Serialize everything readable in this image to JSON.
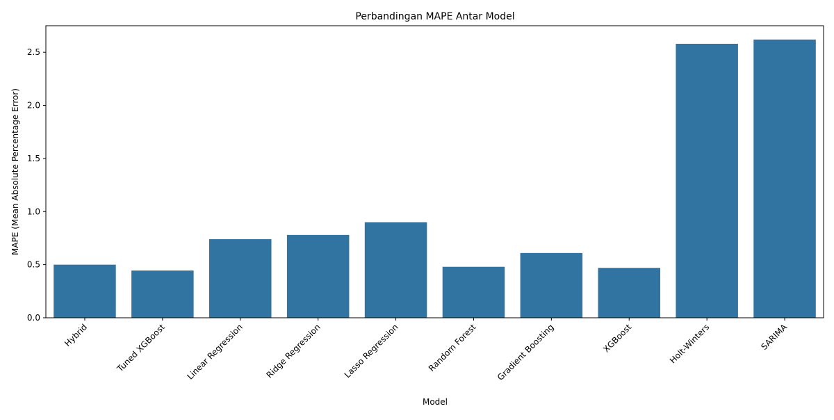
{
  "chart_data": {
    "type": "bar",
    "title": "Perbandingan MAPE Antar Model",
    "xlabel": "Model",
    "ylabel": "MAPE (Mean Absolute Percentage Error)",
    "categories": [
      "Hybrid",
      "Tuned XGBoost",
      "Linear Regression",
      "Ridge Regression",
      "Lasso Regression",
      "Random Forest",
      "Gradient Boosting",
      "XGBoost",
      "Holt-Winters",
      "SARIMA"
    ],
    "values": [
      0.5,
      0.445,
      0.74,
      0.78,
      0.9,
      0.48,
      0.61,
      0.47,
      2.58,
      2.62
    ],
    "ylim": [
      0,
      2.75
    ],
    "yticks": [
      "0.0",
      "0.5",
      "1.0",
      "1.5",
      "2.0",
      "2.5"
    ],
    "grid": false,
    "bar_color": "#3274a1"
  }
}
